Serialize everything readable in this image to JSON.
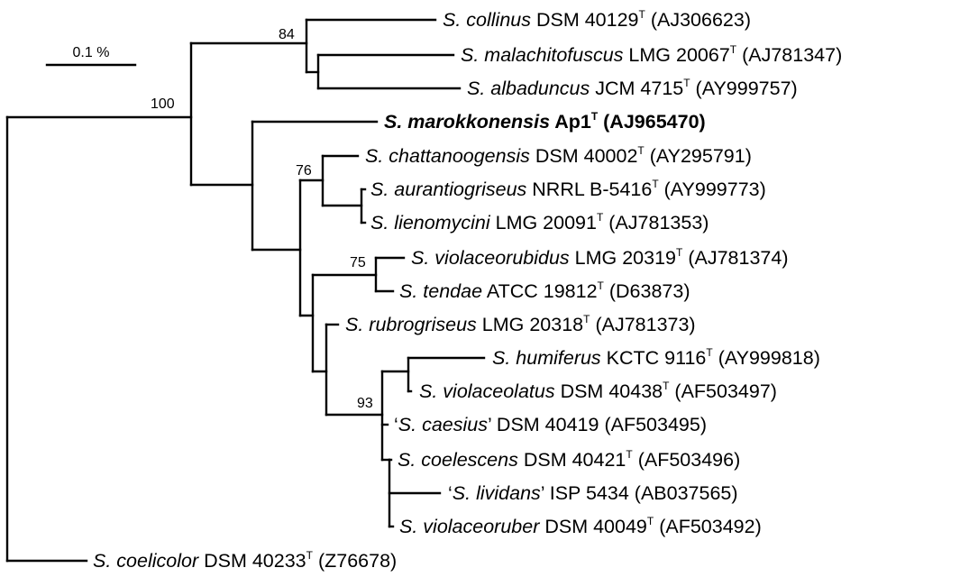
{
  "scale_bar": {
    "label": "0.1 %"
  },
  "taxa": [
    {
      "pre": "",
      "species": "S. collinus",
      "strain": " DSM 40129",
      "type_strain": true,
      "accession": " (AJ306623)",
      "bold": false
    },
    {
      "pre": "",
      "species": "S. malachitofuscus",
      "strain": " LMG 20067",
      "type_strain": true,
      "accession": " (AJ781347)",
      "bold": false
    },
    {
      "pre": "",
      "species": "S. albaduncus",
      "strain": " JCM 4715",
      "type_strain": true,
      "accession": " (AY999757)",
      "bold": false
    },
    {
      "pre": "",
      "species": "S. marokkonensis",
      "strain": " Ap1",
      "type_strain": true,
      "accession": " (AJ965470)",
      "bold": true
    },
    {
      "pre": "",
      "species": "S. chattanoogensis",
      "strain": " DSM 40002",
      "type_strain": true,
      "accession": " (AY295791)",
      "bold": false
    },
    {
      "pre": "",
      "species": "S. aurantiogriseus",
      "strain": " NRRL B-5416",
      "type_strain": true,
      "accession": " (AY999773)",
      "bold": false
    },
    {
      "pre": "",
      "species": "S. lienomycini",
      "strain": " LMG 20091",
      "type_strain": true,
      "accession": " (AJ781353)",
      "bold": false
    },
    {
      "pre": "",
      "species": "S. violaceorubidus",
      "strain": " LMG 20319",
      "type_strain": true,
      "accession": " (AJ781374)",
      "bold": false
    },
    {
      "pre": "",
      "species": "S. tendae",
      "strain": " ATCC 19812",
      "type_strain": true,
      "accession": " (D63873)",
      "bold": false
    },
    {
      "pre": "",
      "species": "S. rubrogriseus",
      "strain": " LMG 20318",
      "type_strain": true,
      "accession": " (AJ781373)",
      "bold": false
    },
    {
      "pre": "",
      "species": "S. humiferus",
      "strain": " KCTC 9116",
      "type_strain": true,
      "accession": " (AY999818)",
      "bold": false
    },
    {
      "pre": "",
      "species": "S. violaceolatus",
      "strain": " DSM 40438",
      "type_strain": true,
      "accession": " (AF503497)",
      "bold": false
    },
    {
      "pre": "‘",
      "species": "S. caesius",
      "strain": "’ DSM 40419",
      "type_strain": false,
      "accession": " (AF503495)",
      "bold": false
    },
    {
      "pre": "",
      "species": "S. coelescens",
      "strain": " DSM 40421",
      "type_strain": true,
      "accession": " (AF503496)",
      "bold": false
    },
    {
      "pre": "‘",
      "species": "S. lividans",
      "strain": "’ ISP 5434",
      "type_strain": false,
      "accession": " (AB037565)",
      "bold": false
    },
    {
      "pre": "",
      "species": "S. violaceoruber",
      "strain": " DSM 40049",
      "type_strain": true,
      "accession": " (AF503492)",
      "bold": false
    },
    {
      "pre": "",
      "species": "S. coelicolor",
      "strain": " DSM 40233",
      "type_strain": true,
      "accession": " (Z76678)",
      "bold": false
    }
  ],
  "type_strain_mark": "T",
  "bootstrap": [
    "84",
    "100",
    "76",
    "75",
    "93"
  ]
}
